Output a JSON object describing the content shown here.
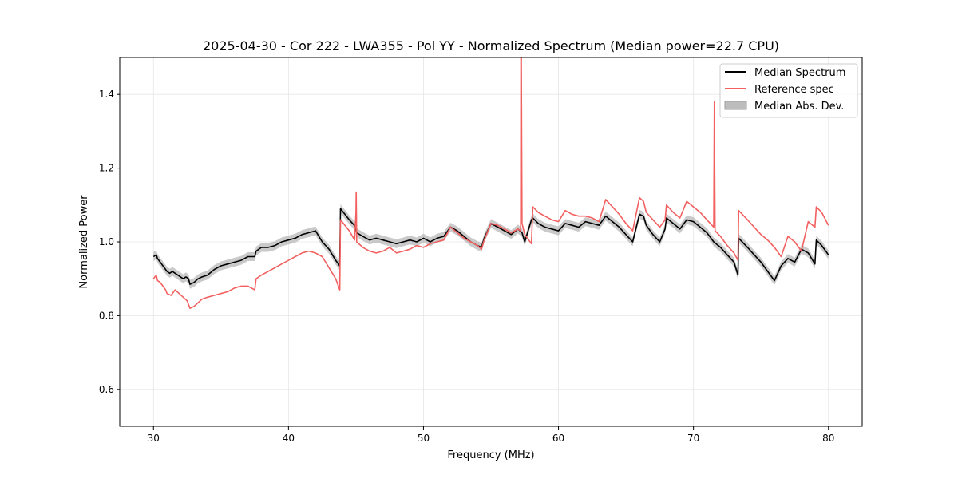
{
  "chart_data": {
    "type": "line",
    "title": "2025-04-30 - Cor 222 - LWA355 - Pol YY - Normalized Spectrum (Median power=22.7 CPU)",
    "xlabel": "Frequency (MHz)",
    "ylabel": "Normalized Power",
    "xlim": [
      27.5,
      82.5
    ],
    "ylim": [
      0.5,
      1.5
    ],
    "xticks": [
      30,
      40,
      50,
      60,
      70,
      80
    ],
    "yticks": [
      0.6,
      0.8,
      1.0,
      1.2,
      1.4
    ],
    "xtick_labels": [
      "30",
      "40",
      "50",
      "60",
      "70",
      "80"
    ],
    "ytick_labels": [
      "0.6",
      "0.8",
      "1.0",
      "1.2",
      "1.4"
    ],
    "grid": true,
    "legend_position": "top-right",
    "legend": [
      "Median Spectrum",
      "Reference spec",
      "Median Abs. Dev."
    ],
    "colors": {
      "median": "#000000",
      "reference": "#f26060",
      "mad": "#bdbdbd"
    },
    "series": [
      {
        "name": "Median Spectrum",
        "x": [
          30.0,
          30.2,
          30.3,
          30.4,
          30.5,
          30.6,
          30.7,
          30.8,
          31.0,
          31.2,
          31.4,
          31.6,
          31.8,
          32.0,
          32.2,
          32.4,
          32.6,
          32.7,
          33.0,
          33.3,
          33.6,
          34.0,
          34.5,
          35.0,
          35.5,
          36.0,
          36.5,
          37.0,
          37.5,
          37.6,
          38.0,
          38.5,
          39.0,
          39.5,
          40.0,
          40.5,
          41.0,
          41.5,
          42.0,
          42.5,
          43.0,
          43.5,
          43.8,
          43.85,
          44.5,
          45.0,
          45.05,
          45.5,
          46.0,
          46.5,
          47.0,
          47.5,
          48.0,
          48.5,
          49.0,
          49.5,
          50.0,
          50.5,
          51.0,
          51.5,
          52.0,
          52.5,
          53.0,
          53.5,
          54.0,
          54.3,
          54.5,
          55.0,
          55.5,
          56.0,
          56.5,
          57.0,
          57.3,
          57.5,
          58.0,
          58.1,
          58.5,
          59.0,
          59.5,
          60.0,
          60.5,
          61.0,
          61.5,
          62.0,
          62.5,
          63.0,
          63.5,
          64.0,
          64.5,
          65.0,
          65.5,
          66.0,
          66.3,
          66.5,
          67.0,
          67.5,
          67.9,
          68.0,
          68.5,
          69.0,
          69.5,
          70.0,
          70.5,
          71.0,
          71.5,
          72.0,
          72.5,
          73.0,
          73.3,
          73.35,
          74.0,
          74.5,
          75.0,
          75.5,
          76.0,
          76.5,
          77.0,
          77.5,
          78.0,
          78.5,
          79.0,
          79.1,
          79.5,
          80.0
        ],
        "values": [
          0.96,
          0.965,
          0.955,
          0.95,
          0.945,
          0.94,
          0.935,
          0.93,
          0.92,
          0.915,
          0.92,
          0.915,
          0.91,
          0.905,
          0.9,
          0.905,
          0.9,
          0.885,
          0.89,
          0.9,
          0.905,
          0.91,
          0.925,
          0.935,
          0.94,
          0.945,
          0.95,
          0.96,
          0.96,
          0.975,
          0.985,
          0.985,
          0.99,
          1.0,
          1.005,
          1.01,
          1.02,
          1.025,
          1.03,
          1.0,
          0.98,
          0.95,
          0.935,
          1.09,
          1.06,
          1.04,
          1.025,
          1.015,
          1.005,
          1.01,
          1.005,
          1.0,
          0.995,
          1.0,
          1.005,
          1.0,
          1.01,
          1.0,
          1.01,
          1.015,
          1.04,
          1.03,
          1.015,
          1.0,
          0.99,
          0.985,
          1.01,
          1.05,
          1.04,
          1.03,
          1.02,
          1.035,
          1.025,
          1.0,
          1.06,
          1.065,
          1.05,
          1.04,
          1.035,
          1.03,
          1.05,
          1.045,
          1.04,
          1.055,
          1.05,
          1.045,
          1.07,
          1.055,
          1.04,
          1.02,
          1.0,
          1.075,
          1.07,
          1.045,
          1.02,
          1.0,
          1.035,
          1.065,
          1.05,
          1.035,
          1.06,
          1.055,
          1.04,
          1.025,
          1.0,
          0.985,
          0.965,
          0.945,
          0.91,
          1.01,
          0.985,
          0.965,
          0.945,
          0.92,
          0.895,
          0.935,
          0.955,
          0.945,
          0.98,
          0.97,
          0.94,
          1.005,
          0.99,
          0.965
        ]
      },
      {
        "name": "Reference spec",
        "x": [
          30.0,
          30.2,
          30.3,
          30.5,
          30.7,
          30.9,
          31.0,
          31.3,
          31.6,
          31.9,
          32.2,
          32.5,
          32.7,
          33.0,
          33.3,
          33.6,
          34.0,
          34.5,
          35.0,
          35.5,
          36.0,
          36.5,
          37.0,
          37.5,
          37.6,
          38.0,
          38.5,
          39.0,
          39.5,
          40.0,
          40.5,
          41.0,
          41.5,
          42.0,
          42.5,
          43.0,
          43.5,
          43.8,
          43.85,
          44.5,
          44.9,
          45.0,
          45.02,
          45.05,
          45.5,
          46.0,
          46.5,
          47.0,
          47.5,
          48.0,
          48.5,
          49.0,
          49.5,
          50.0,
          50.5,
          51.0,
          51.5,
          52.0,
          52.5,
          53.0,
          53.5,
          54.0,
          54.3,
          54.5,
          55.0,
          55.5,
          56.0,
          56.5,
          57.0,
          57.2,
          57.22,
          57.25,
          57.3,
          57.5,
          58.0,
          58.1,
          58.5,
          59.0,
          59.5,
          60.0,
          60.5,
          61.0,
          61.5,
          62.0,
          62.5,
          63.0,
          63.5,
          64.0,
          64.5,
          65.0,
          65.5,
          66.0,
          66.3,
          66.5,
          67.0,
          67.5,
          67.9,
          68.0,
          68.5,
          69.0,
          69.5,
          70.0,
          70.5,
          71.0,
          71.5,
          71.55,
          71.6,
          72.0,
          72.5,
          73.0,
          73.3,
          73.35,
          74.0,
          74.5,
          75.0,
          75.5,
          76.0,
          76.5,
          77.0,
          77.5,
          78.0,
          78.5,
          79.0,
          79.1,
          79.5,
          80.0
        ],
        "values": [
          0.9,
          0.91,
          0.895,
          0.89,
          0.88,
          0.87,
          0.86,
          0.855,
          0.87,
          0.86,
          0.85,
          0.84,
          0.82,
          0.825,
          0.835,
          0.845,
          0.85,
          0.855,
          0.86,
          0.865,
          0.875,
          0.88,
          0.88,
          0.87,
          0.9,
          0.91,
          0.92,
          0.93,
          0.94,
          0.95,
          0.96,
          0.97,
          0.975,
          0.97,
          0.96,
          0.93,
          0.9,
          0.87,
          1.06,
          1.03,
          1.005,
          1.08,
          1.135,
          1.0,
          0.985,
          0.975,
          0.97,
          0.975,
          0.985,
          0.97,
          0.975,
          0.98,
          0.99,
          0.985,
          0.995,
          1.0,
          1.005,
          1.04,
          1.025,
          1.01,
          1.0,
          0.99,
          0.98,
          1.005,
          1.05,
          1.045,
          1.035,
          1.025,
          1.035,
          1.03,
          1.5,
          1.5,
          1.05,
          1.02,
          0.995,
          1.095,
          1.08,
          1.07,
          1.06,
          1.055,
          1.085,
          1.075,
          1.07,
          1.07,
          1.065,
          1.055,
          1.115,
          1.095,
          1.075,
          1.05,
          1.03,
          1.12,
          1.11,
          1.08,
          1.06,
          1.04,
          1.06,
          1.1,
          1.08,
          1.065,
          1.11,
          1.095,
          1.08,
          1.06,
          1.04,
          1.38,
          1.03,
          1.015,
          0.99,
          0.97,
          0.95,
          1.085,
          1.06,
          1.04,
          1.02,
          1.005,
          0.985,
          0.96,
          1.015,
          1.0,
          0.975,
          1.055,
          1.04,
          1.095,
          1.08,
          1.045
        ]
      }
    ]
  }
}
